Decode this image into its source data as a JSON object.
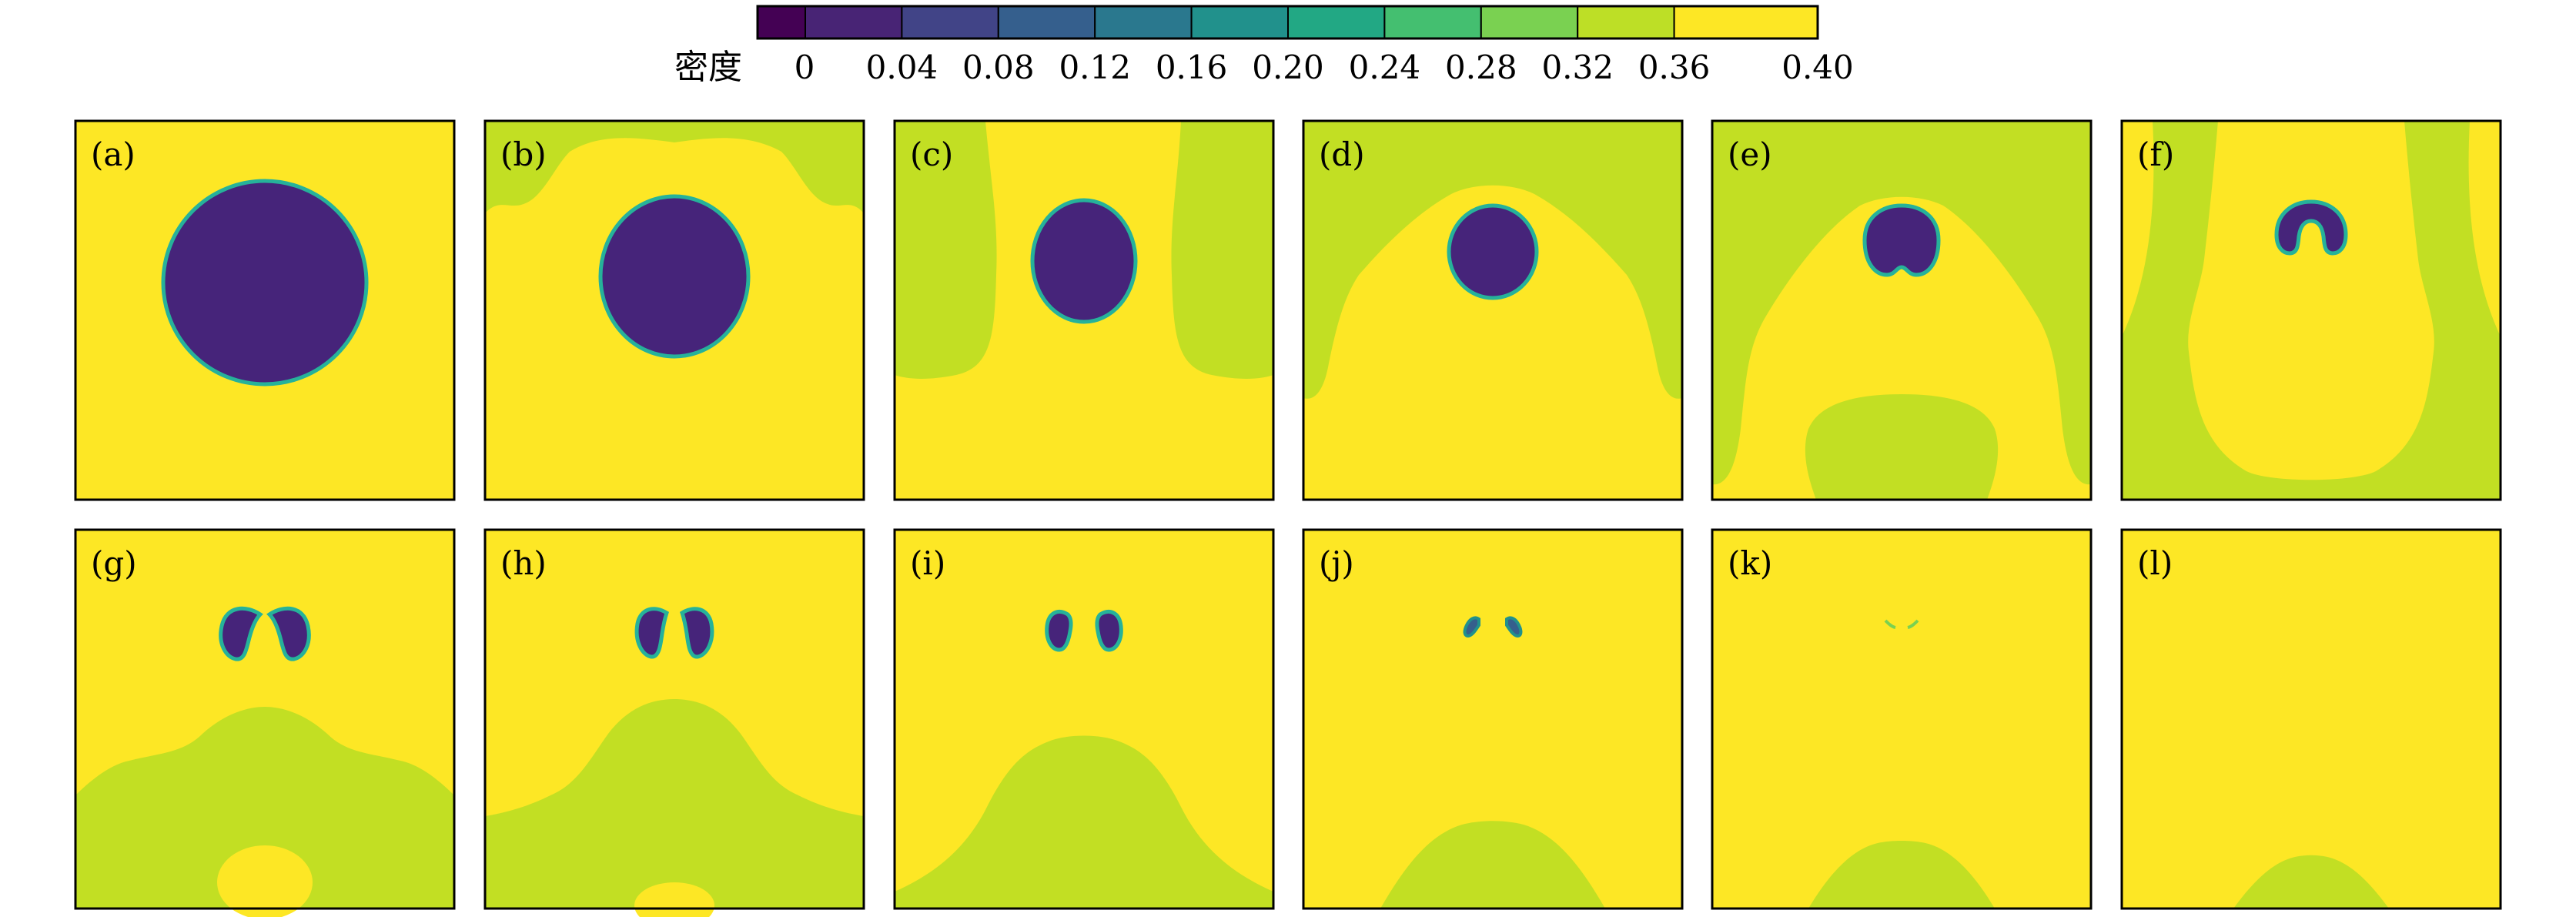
{
  "colorbar": {
    "label": "密度",
    "ticks": [
      "0",
      "0.04",
      "0.08",
      "0.12",
      "0.16",
      "0.20",
      "0.24",
      "0.28",
      "0.32",
      "0.36",
      "0.40"
    ],
    "colors": [
      "#440154",
      "#482475",
      "#414487",
      "#355f8d",
      "#2a788e",
      "#21918c",
      "#22a884",
      "#44bf70",
      "#7ad151",
      "#bddf26",
      "#fde725"
    ]
  },
  "colors": {
    "background_high": "#fde725",
    "band_mid": "#c2df23",
    "bubble_low": "#46247a",
    "bubble_edge": "#26b29a",
    "frame": "#000000"
  },
  "panels": [
    {
      "label": "(a)"
    },
    {
      "label": "(b)"
    },
    {
      "label": "(c)"
    },
    {
      "label": "(d)"
    },
    {
      "label": "(e)"
    },
    {
      "label": "(f)"
    },
    {
      "label": "(g)"
    },
    {
      "label": "(h)"
    },
    {
      "label": "(i)"
    },
    {
      "label": "(j)"
    },
    {
      "label": "(k)"
    },
    {
      "label": "(l)"
    }
  ]
}
